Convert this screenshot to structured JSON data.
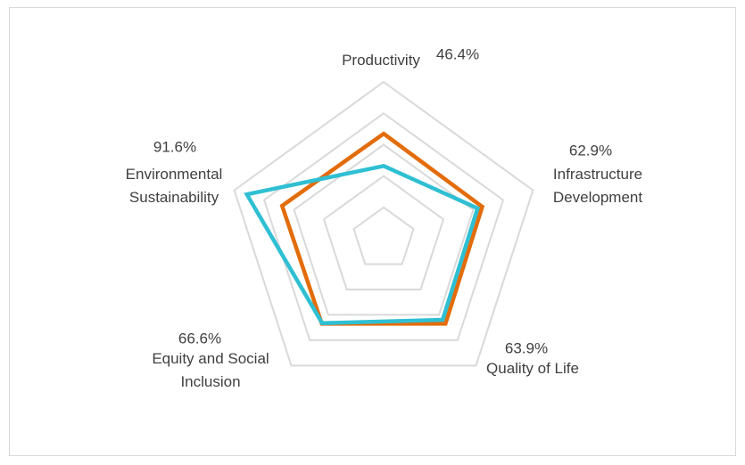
{
  "chart_data": {
    "type": "radar",
    "categories": [
      "Productivity",
      "Infrastructure Development",
      "Quality of Life",
      "Equity and Social Inclusion",
      "Environmental Sustainability"
    ],
    "series": [
      {
        "color": "#e36c0a",
        "values": [
          67,
          66,
          67,
          67,
          68
        ]
      },
      {
        "color": "#2fbfd3",
        "values": [
          46.4,
          62.9,
          63.9,
          66.6,
          91.6
        ],
        "value_labels": [
          "46.4%",
          "62.9%",
          "63.9%",
          "66.6%",
          "91.6%"
        ]
      }
    ],
    "ylim": [
      0,
      100
    ],
    "yticks": [
      20,
      40,
      60,
      80,
      100
    ],
    "grid": true
  }
}
